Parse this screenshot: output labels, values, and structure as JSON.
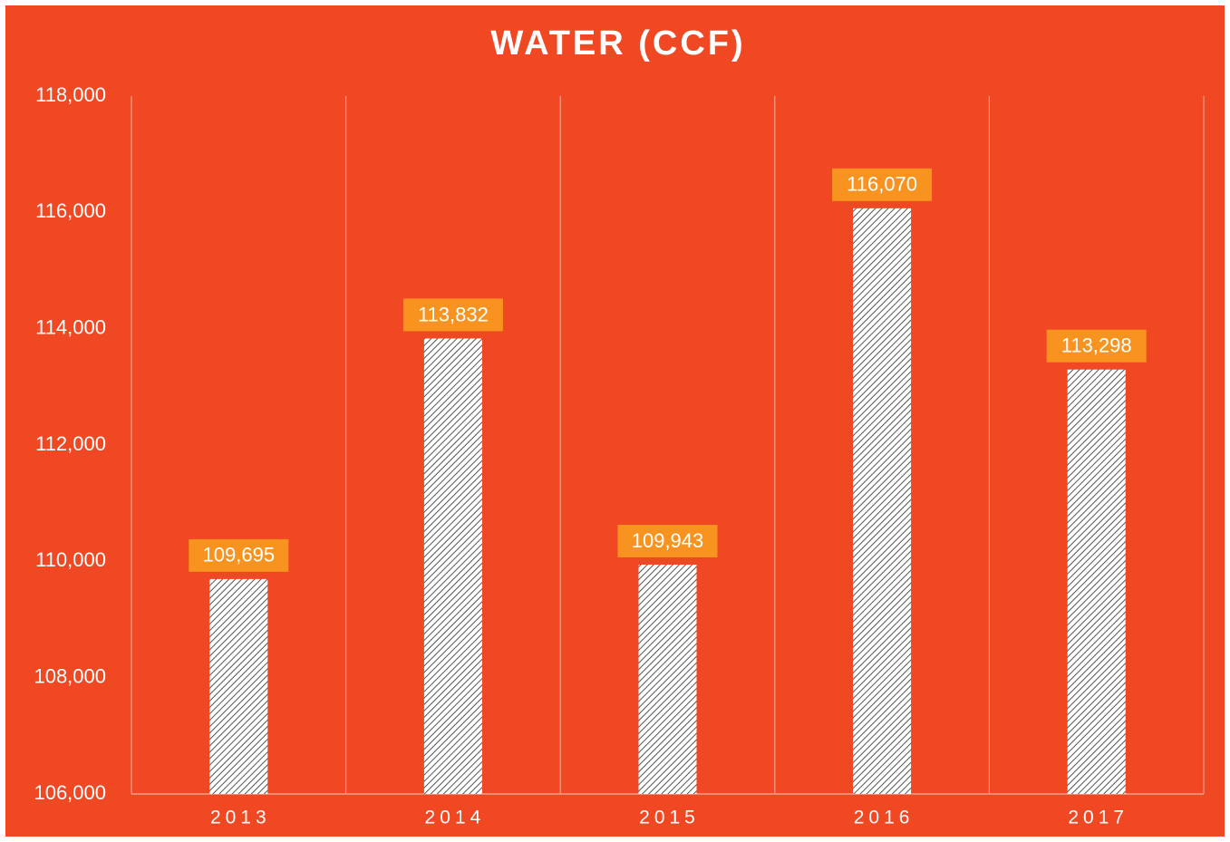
{
  "chart_data": {
    "type": "bar",
    "title": "WATER (CCF)",
    "categories": [
      "2013",
      "2014",
      "2015",
      "2016",
      "2017"
    ],
    "values": [
      109695,
      113832,
      109943,
      116070,
      113298
    ],
    "value_labels": [
      "109,695",
      "113,832",
      "109,943",
      "116,070",
      "113,298"
    ],
    "color": "#ffffff",
    "ylim": [
      106000,
      118000
    ],
    "yticks": [
      {
        "value": 106000,
        "label": "106,000"
      },
      {
        "value": 108000,
        "label": "108,000"
      },
      {
        "value": 110000,
        "label": "110,000"
      },
      {
        "value": 112000,
        "label": "112,000"
      },
      {
        "value": 114000,
        "label": "114,000"
      },
      {
        "value": 116000,
        "label": "116,000"
      },
      {
        "value": 118000,
        "label": "118,000"
      }
    ],
    "grid": false
  }
}
